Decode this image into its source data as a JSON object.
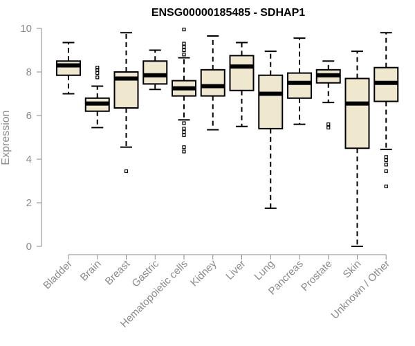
{
  "chart_data": {
    "type": "box",
    "title": "ENSG00000185485 - SDHAP1",
    "xlabel": "",
    "ylabel": "Expression",
    "ylim": [
      0,
      10
    ],
    "yticks": [
      0,
      2,
      4,
      6,
      8,
      10
    ],
    "box_fill": "#efe8cf",
    "categories": [
      "Bladder",
      "Brain",
      "Breast",
      "Gastric",
      "Hematopoietic cells",
      "Kidney",
      "Liver",
      "Lung",
      "Pancreas",
      "Prostate",
      "Skin",
      "Unknown / Other"
    ],
    "boxes": [
      {
        "name": "Bladder",
        "whisker_low": 7.0,
        "q1": 7.85,
        "median": 8.3,
        "q3": 8.5,
        "whisker_high": 9.35,
        "outliers": []
      },
      {
        "name": "Brain",
        "whisker_low": 5.45,
        "q1": 6.2,
        "median": 6.55,
        "q3": 6.8,
        "whisker_high": 7.35,
        "outliers": [
          7.75,
          7.95,
          8.1,
          8.2
        ]
      },
      {
        "name": "Breast",
        "whisker_low": 4.55,
        "q1": 6.35,
        "median": 7.7,
        "q3": 8.0,
        "whisker_high": 9.8,
        "outliers": [
          3.45
        ]
      },
      {
        "name": "Gastric",
        "whisker_low": 7.2,
        "q1": 7.45,
        "median": 7.85,
        "q3": 8.5,
        "whisker_high": 9.0,
        "outliers": []
      },
      {
        "name": "Hematopoietic cells",
        "whisker_low": 5.8,
        "q1": 6.9,
        "median": 7.25,
        "q3": 7.6,
        "whisker_high": 8.65,
        "outliers": [
          4.35,
          4.55,
          5.1,
          5.25,
          5.4,
          5.65,
          8.8,
          9.0,
          9.15,
          9.3,
          9.95
        ]
      },
      {
        "name": "Kidney",
        "whisker_low": 5.35,
        "q1": 6.9,
        "median": 7.35,
        "q3": 8.1,
        "whisker_high": 9.65,
        "outliers": []
      },
      {
        "name": "Liver",
        "whisker_low": 5.5,
        "q1": 7.15,
        "median": 8.25,
        "q3": 8.75,
        "whisker_high": 9.35,
        "outliers": []
      },
      {
        "name": "Lung",
        "whisker_low": 1.75,
        "q1": 5.4,
        "median": 7.0,
        "q3": 7.85,
        "whisker_high": 8.95,
        "outliers": []
      },
      {
        "name": "Pancreas",
        "whisker_low": 5.6,
        "q1": 6.8,
        "median": 7.5,
        "q3": 7.95,
        "whisker_high": 9.55,
        "outliers": []
      },
      {
        "name": "Prostate",
        "whisker_low": 6.6,
        "q1": 7.5,
        "median": 7.85,
        "q3": 8.1,
        "whisker_high": 8.5,
        "outliers": [
          5.45,
          5.6
        ]
      },
      {
        "name": "Skin",
        "whisker_low": 0.0,
        "q1": 4.5,
        "median": 6.55,
        "q3": 7.7,
        "whisker_high": 8.95,
        "outliers": []
      },
      {
        "name": "Unknown / Other",
        "whisker_low": 4.45,
        "q1": 6.65,
        "median": 7.5,
        "q3": 8.2,
        "whisker_high": 9.8,
        "outliers": [
          2.75,
          3.45,
          3.75,
          3.95,
          4.1
        ]
      }
    ]
  }
}
